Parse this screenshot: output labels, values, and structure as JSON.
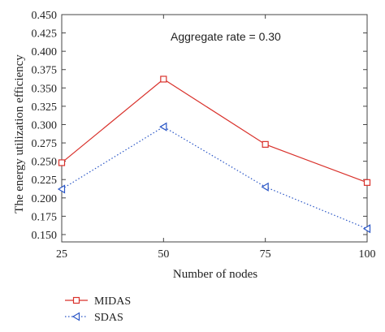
{
  "chart_data": {
    "type": "line",
    "title": "",
    "xlabel": "Number of nodes",
    "ylabel": "The energy utilization efficiency",
    "annotation": "Aggregate rate = 0.30",
    "x": [
      25,
      50,
      75,
      100
    ],
    "xticks": [
      "25",
      "50",
      "75",
      "100"
    ],
    "yticks": [
      "0.150",
      "0.175",
      "0.200",
      "0.225",
      "0.250",
      "0.275",
      "0.300",
      "0.325",
      "0.350",
      "0.375",
      "0.400",
      "0.425",
      "0.450"
    ],
    "xlim": [
      25,
      100
    ],
    "ylim": [
      0.14,
      0.45
    ],
    "grid": false,
    "legend_position": "bottom-left, outside plot",
    "series": [
      {
        "name": "MIDAS",
        "values": [
          0.248,
          0.362,
          0.273,
          0.221
        ],
        "color": "#d9312b",
        "marker": "square",
        "line": "solid"
      },
      {
        "name": "SDAS",
        "values": [
          0.212,
          0.297,
          0.215,
          0.158
        ],
        "color": "#2a56c6",
        "marker": "triangle-left",
        "line": "dotted"
      }
    ]
  }
}
